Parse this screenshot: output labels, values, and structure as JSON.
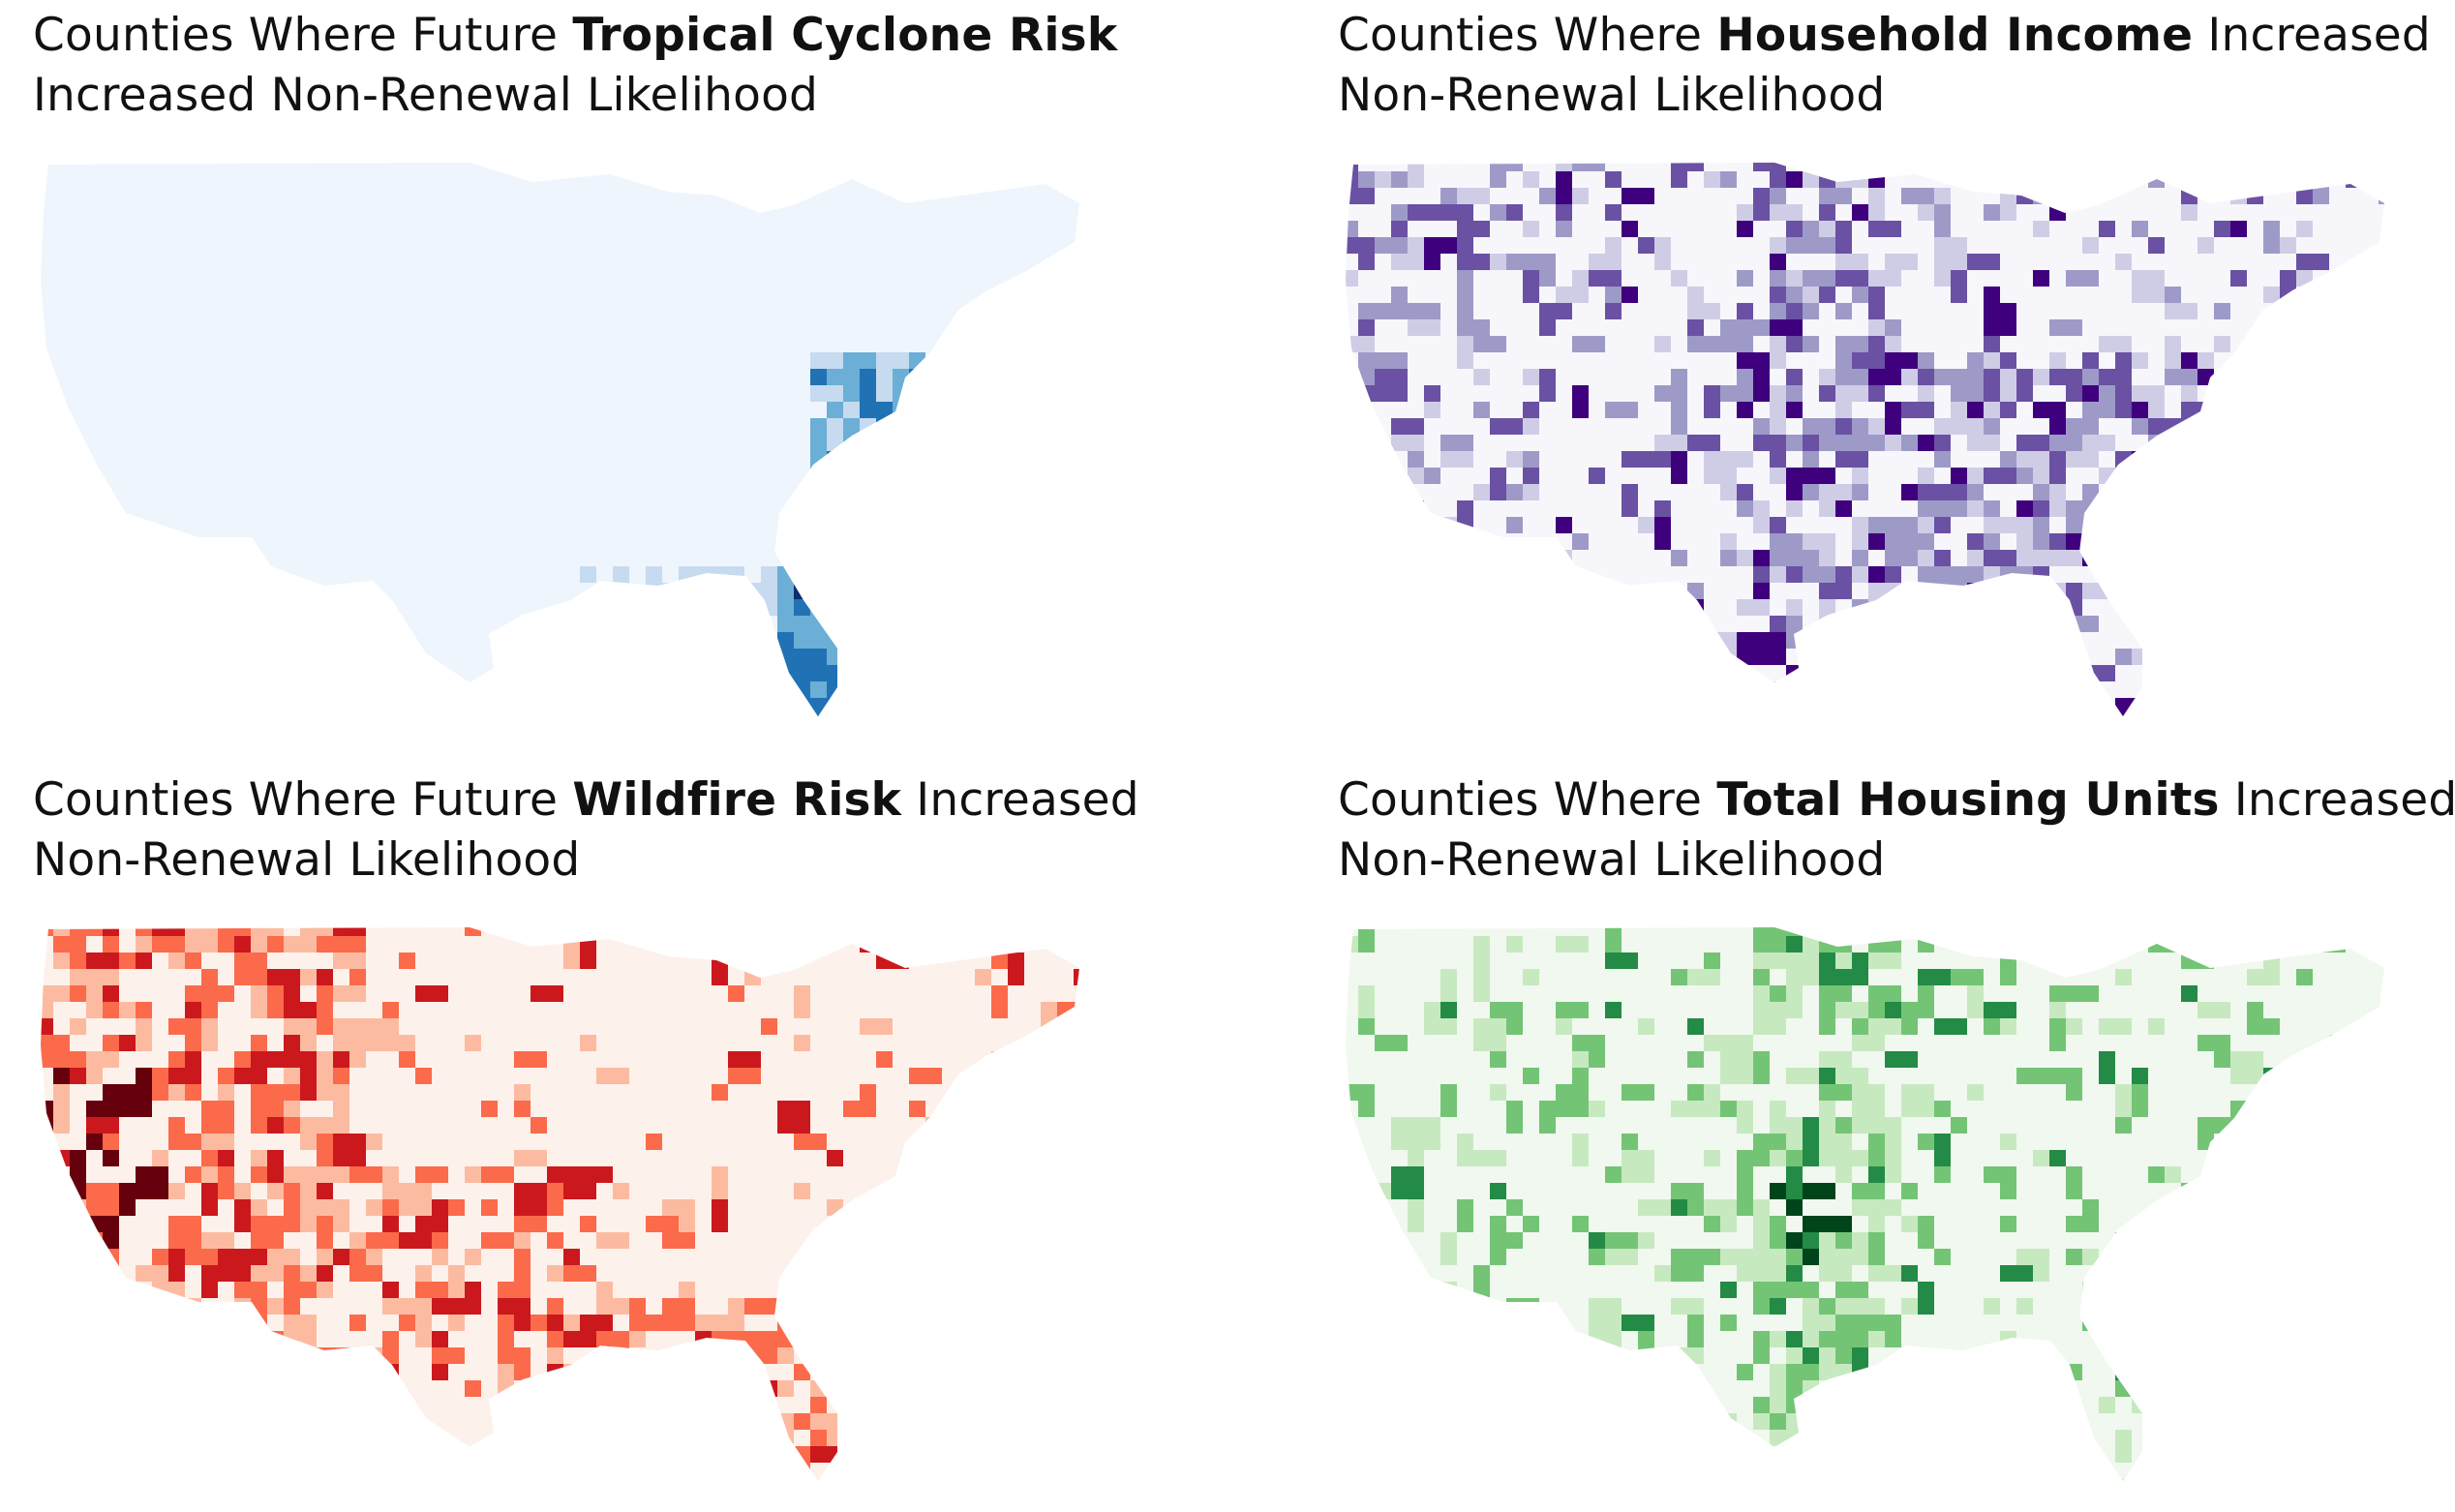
{
  "panels": [
    {
      "title_prefix": "Counties Where Future ",
      "title_bold": "Tropical Cyclone Risk",
      "title_suffix": "",
      "title_line2": "Increased Non-Renewal Likelihood",
      "colors": {
        "base": "#eef5fc",
        "light": "#c6dbef",
        "mid": "#6baed6",
        "dark": "#2171b5",
        "darkest": "#08306b"
      },
      "map_icon": "us-counties-choropleth"
    },
    {
      "title_prefix": "Counties Where ",
      "title_bold": "Household Income",
      "title_suffix": " Increased",
      "title_line2": "Non-Renewal Likelihood",
      "colors": {
        "base": "#f7f6fb",
        "light": "#cfcde6",
        "mid": "#9e9ac8",
        "dark": "#6a51a3",
        "darkest": "#3f007d"
      },
      "map_icon": "us-counties-choropleth"
    },
    {
      "title_prefix": "Counties Where Future ",
      "title_bold": "Wildfire Risk",
      "title_suffix": " Increased",
      "title_line2": "Non-Renewal Likelihood",
      "colors": {
        "base": "#fdf1ec",
        "light": "#fcbba1",
        "mid": "#fb6a4a",
        "dark": "#cb181d",
        "darkest": "#67000d"
      },
      "map_icon": "us-counties-choropleth"
    },
    {
      "title_prefix": "Counties Where ",
      "title_bold": "Total Housing Units",
      "title_suffix": " Increased",
      "title_line2": "Non-Renewal Likelihood",
      "colors": {
        "base": "#f1f8ef",
        "light": "#c7e9c0",
        "mid": "#74c476",
        "dark": "#238b45",
        "darkest": "#00441b"
      },
      "map_icon": "us-counties-choropleth"
    }
  ]
}
